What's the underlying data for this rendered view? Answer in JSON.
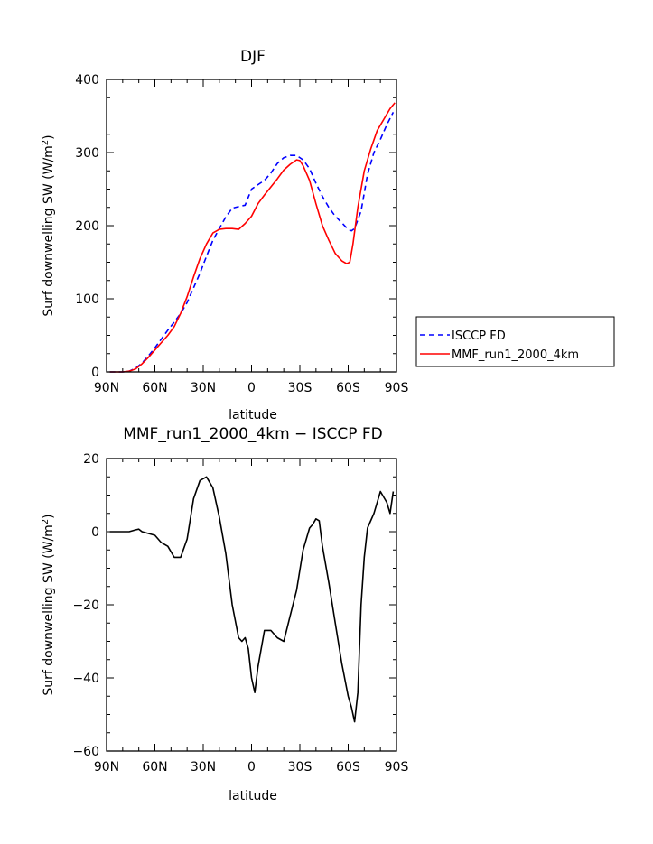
{
  "chart_data": [
    {
      "type": "line",
      "title": "DJF",
      "xlabel": "latitude",
      "ylabel": "Surf downwelling SW (W/m",
      "ylabel_sup": "2",
      "ylabel_end": ")",
      "xlim": [
        90,
        -90
      ],
      "ylim": [
        0,
        400
      ],
      "xticks": [
        90,
        60,
        30,
        0,
        -30,
        -60,
        -90
      ],
      "xtick_labels": [
        "90N",
        "60N",
        "30N",
        "0",
        "30S",
        "60S",
        "90S"
      ],
      "yticks": [
        0,
        100,
        200,
        300,
        400
      ],
      "ytick_labels": [
        "0",
        "100",
        "200",
        "300",
        "400"
      ],
      "legend": "right",
      "grid": false,
      "series": [
        {
          "name": "ISCCP FD",
          "color": "#0000ff",
          "dash": "dashed",
          "x": [
            88,
            84,
            80,
            76,
            72,
            68,
            64,
            60,
            56,
            52,
            48,
            44,
            40,
            36,
            32,
            28,
            24,
            20,
            16,
            12,
            8,
            4,
            0,
            -4,
            -8,
            -12,
            -16,
            -20,
            -24,
            -28,
            -32,
            -36,
            -40,
            -44,
            -48,
            -52,
            -56,
            -60,
            -62,
            -64,
            -68,
            -72,
            -76,
            -80,
            -84,
            -88
          ],
          "y": [
            0,
            0,
            0,
            1,
            5,
            12,
            22,
            33,
            45,
            57,
            68,
            80,
            95,
            115,
            135,
            158,
            180,
            196,
            212,
            224,
            226,
            228,
            250,
            256,
            262,
            272,
            285,
            293,
            296,
            296,
            290,
            278,
            258,
            240,
            225,
            213,
            204,
            195,
            193,
            196,
            220,
            270,
            300,
            318,
            338,
            355
          ]
        },
        {
          "name": "MMF_run1_2000_4km",
          "color": "#ff0000",
          "dash": "solid",
          "x": [
            88,
            84,
            80,
            76,
            72,
            68,
            64,
            60,
            56,
            52,
            48,
            44,
            40,
            36,
            32,
            28,
            24,
            20,
            16,
            12,
            8,
            4,
            0,
            -4,
            -8,
            -12,
            -16,
            -20,
            -24,
            -28,
            -30,
            -32,
            -36,
            -40,
            -44,
            -48,
            -52,
            -56,
            -59,
            -61,
            -63,
            -66,
            -70,
            -74,
            -78,
            -82,
            -86,
            -89
          ],
          "y": [
            0,
            0,
            0,
            1,
            4,
            11,
            20,
            30,
            40,
            50,
            62,
            80,
            103,
            130,
            155,
            175,
            190,
            195,
            196,
            196,
            195,
            203,
            213,
            230,
            242,
            253,
            264,
            276,
            284,
            290,
            289,
            282,
            262,
            230,
            200,
            180,
            162,
            152,
            148,
            150,
            175,
            225,
            275,
            305,
            330,
            345,
            360,
            368
          ]
        }
      ]
    },
    {
      "type": "line",
      "title": "MMF_run1_2000_4km − ISCCP FD",
      "xlabel": "latitude",
      "ylabel": "Surf downwelling SW (W/m",
      "ylabel_sup": "2",
      "ylabel_end": ")",
      "xlim": [
        90,
        -90
      ],
      "ylim": [
        -60,
        20
      ],
      "xticks": [
        90,
        60,
        30,
        0,
        -30,
        -60,
        -90
      ],
      "xtick_labels": [
        "90N",
        "60N",
        "30N",
        "0",
        "30S",
        "60S",
        "90S"
      ],
      "yticks": [
        -60,
        -40,
        -20,
        0,
        20
      ],
      "ytick_labels": [
        "−60",
        "−40",
        "−20",
        "0",
        "20"
      ],
      "grid": false,
      "series": [
        {
          "color": "#000000",
          "dash": "solid",
          "x": [
            88,
            84,
            80,
            76,
            72,
            70,
            68,
            64,
            60,
            56,
            52,
            48,
            44,
            40,
            36,
            32,
            28,
            24,
            20,
            16,
            12,
            8,
            6,
            4,
            2,
            0,
            -2,
            -4,
            -8,
            -12,
            -16,
            -20,
            -24,
            -28,
            -32,
            -36,
            -38,
            -40,
            -42,
            -44,
            -48,
            -52,
            -56,
            -60,
            -62,
            -64,
            -66,
            -68,
            -70,
            -72,
            -76,
            -80,
            -84,
            -86,
            -88
          ],
          "y": [
            0,
            0,
            0,
            0,
            0.5,
            0.7,
            0,
            -0.5,
            -1,
            -3,
            -4,
            -7,
            -7,
            -2,
            9,
            14,
            15,
            12,
            4,
            -6,
            -20,
            -29,
            -30,
            -29,
            -32,
            -40,
            -44,
            -37,
            -27,
            -27,
            -29,
            -30,
            -23,
            -16,
            -5,
            1,
            2,
            3.5,
            3,
            -4,
            -14,
            -25,
            -36,
            -45,
            -48,
            -52,
            -44,
            -20,
            -7,
            1,
            5,
            11,
            8,
            5,
            11
          ]
        }
      ]
    }
  ]
}
